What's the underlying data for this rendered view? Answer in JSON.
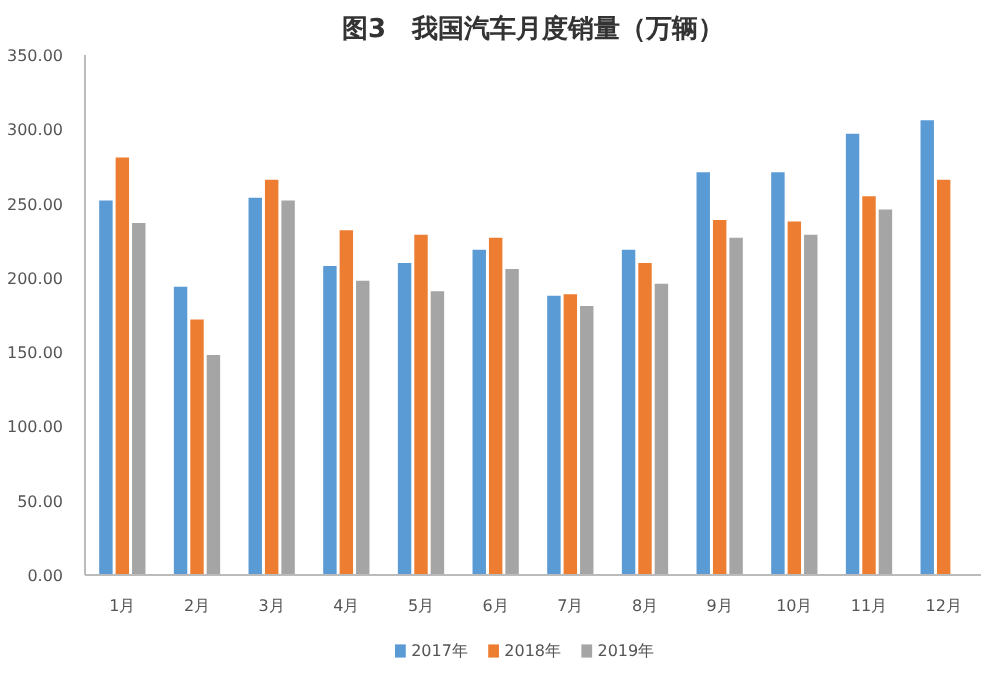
{
  "chart_data": {
    "type": "bar",
    "title": "图3　我国汽车月度销量（万辆）",
    "categories": [
      "1月",
      "2月",
      "3月",
      "4月",
      "5月",
      "6月",
      "7月",
      "8月",
      "9月",
      "10月",
      "11月",
      "12月"
    ],
    "series": [
      {
        "name": "2017年",
        "color": "#5b9bd5",
        "values": [
          252,
          194,
          254,
          208,
          210,
          219,
          188,
          219,
          271,
          271,
          297,
          306
        ]
      },
      {
        "name": "2018年",
        "color": "#ed7d31",
        "values": [
          281,
          172,
          266,
          232,
          229,
          227,
          189,
          210,
          239,
          238,
          255,
          266
        ]
      },
      {
        "name": "2019年",
        "color": "#a5a5a5",
        "values": [
          237,
          148,
          252,
          198,
          191,
          206,
          181,
          196,
          227,
          229,
          246,
          null
        ]
      }
    ],
    "ylim": [
      0,
      350
    ],
    "yticks": [
      {
        "value": 0,
        "label": "0.00"
      },
      {
        "value": 50,
        "label": "50.00"
      },
      {
        "value": 100,
        "label": "100.00"
      },
      {
        "value": 150,
        "label": "150.00"
      },
      {
        "value": 200,
        "label": "200.00"
      },
      {
        "value": 250,
        "label": "250.00"
      },
      {
        "value": 300,
        "label": "300.00"
      },
      {
        "value": 350,
        "label": "350.00"
      }
    ],
    "grid": false,
    "legend": "bottom"
  }
}
